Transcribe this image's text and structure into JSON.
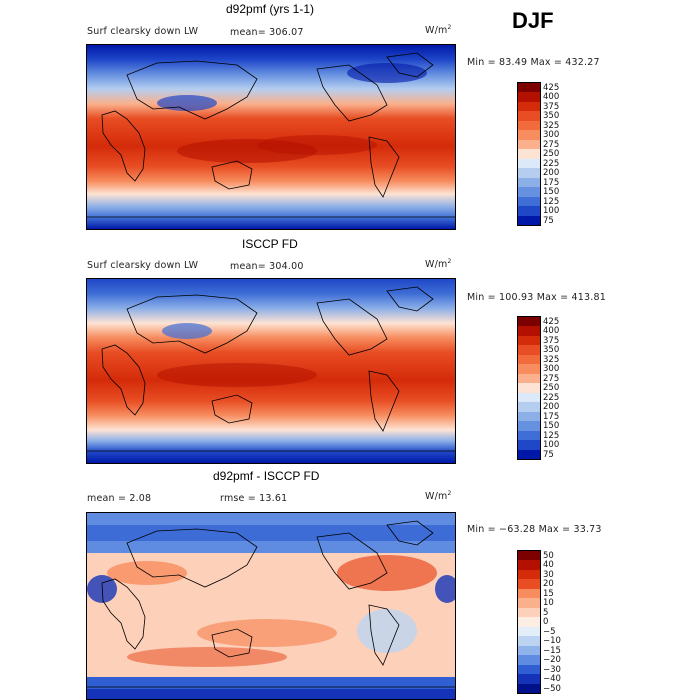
{
  "season": "DJF",
  "units_label": "W/m",
  "units_sup": "2",
  "panels": [
    {
      "title": "d92pmf (yrs 1-1)",
      "variable": "Surf clearsky down LW",
      "stat": "mean= 306.07",
      "min_max": "Min =  83.49 Max = 432.27"
    },
    {
      "title": "ISCCP FD",
      "variable": "Surf clearsky down LW",
      "stat": "mean= 304.00",
      "min_max": "Min = 100.93 Max = 413.81"
    },
    {
      "title": "d92pmf - ISCCP FD",
      "stat_mean": "mean =   2.08",
      "stat_rmse": "rmse =  13.61",
      "min_max": "Min = −63.28 Max =  33.73"
    }
  ],
  "chart_data": [
    {
      "type": "heatmap",
      "title": "d92pmf (yrs 1-1)",
      "subtitle": "Surf clearsky down LW",
      "units": "W/m^2",
      "mean": 306.07,
      "min": 83.49,
      "max": 432.27,
      "colorbar_levels": [
        425,
        400,
        375,
        350,
        325,
        300,
        275,
        250,
        225,
        200,
        175,
        150,
        125,
        100,
        75
      ],
      "latitude_profile": {
        "lat": [
          90,
          60,
          30,
          0,
          -30,
          -60,
          -90
        ],
        "value": [
          170,
          230,
          330,
          410,
          340,
          260,
          110
        ]
      }
    },
    {
      "type": "heatmap",
      "title": "ISCCP FD",
      "subtitle": "Surf clearsky down LW",
      "units": "W/m^2",
      "mean": 304.0,
      "min": 100.93,
      "max": 413.81,
      "colorbar_levels": [
        425,
        400,
        375,
        350,
        325,
        300,
        275,
        250,
        225,
        200,
        175,
        150,
        125,
        100,
        75
      ],
      "latitude_profile": {
        "lat": [
          90,
          60,
          30,
          0,
          -30,
          -60,
          -90
        ],
        "value": [
          175,
          225,
          325,
          405,
          335,
          255,
          120
        ]
      }
    },
    {
      "type": "heatmap",
      "title": "d92pmf - ISCCP FD",
      "units": "W/m^2",
      "mean": 2.08,
      "rmse": 13.61,
      "min": -63.28,
      "max": 33.73,
      "colorbar_levels": [
        50,
        40,
        30,
        20,
        15,
        10,
        5,
        0,
        -5,
        -10,
        -15,
        -20,
        -30,
        -40,
        -50
      ],
      "latitude_profile": {
        "lat": [
          90,
          60,
          30,
          0,
          -30,
          -60,
          -90
        ],
        "value": [
          -20,
          5,
          10,
          8,
          10,
          5,
          -25
        ]
      }
    }
  ],
  "colors": {
    "seq": [
      "#7c0000",
      "#b31000",
      "#d42b0a",
      "#e84d23",
      "#f26b3c",
      "#f78c5e",
      "#fab08c",
      "#fde3d3",
      "#dbe9f8",
      "#b5cef0",
      "#8cafe8",
      "#6690e0",
      "#3f6ed6",
      "#1f47c8",
      "#0018a8"
    ],
    "diff": [
      "#7c0000",
      "#b31000",
      "#d42b0a",
      "#e84d23",
      "#f78c5e",
      "#fab08c",
      "#fdd0b9",
      "#fdeee4",
      "#e4eef9",
      "#bcd4f2",
      "#8fb3ea",
      "#5f8be0",
      "#2f5fd2",
      "#1433b8",
      "#00118a"
    ]
  }
}
